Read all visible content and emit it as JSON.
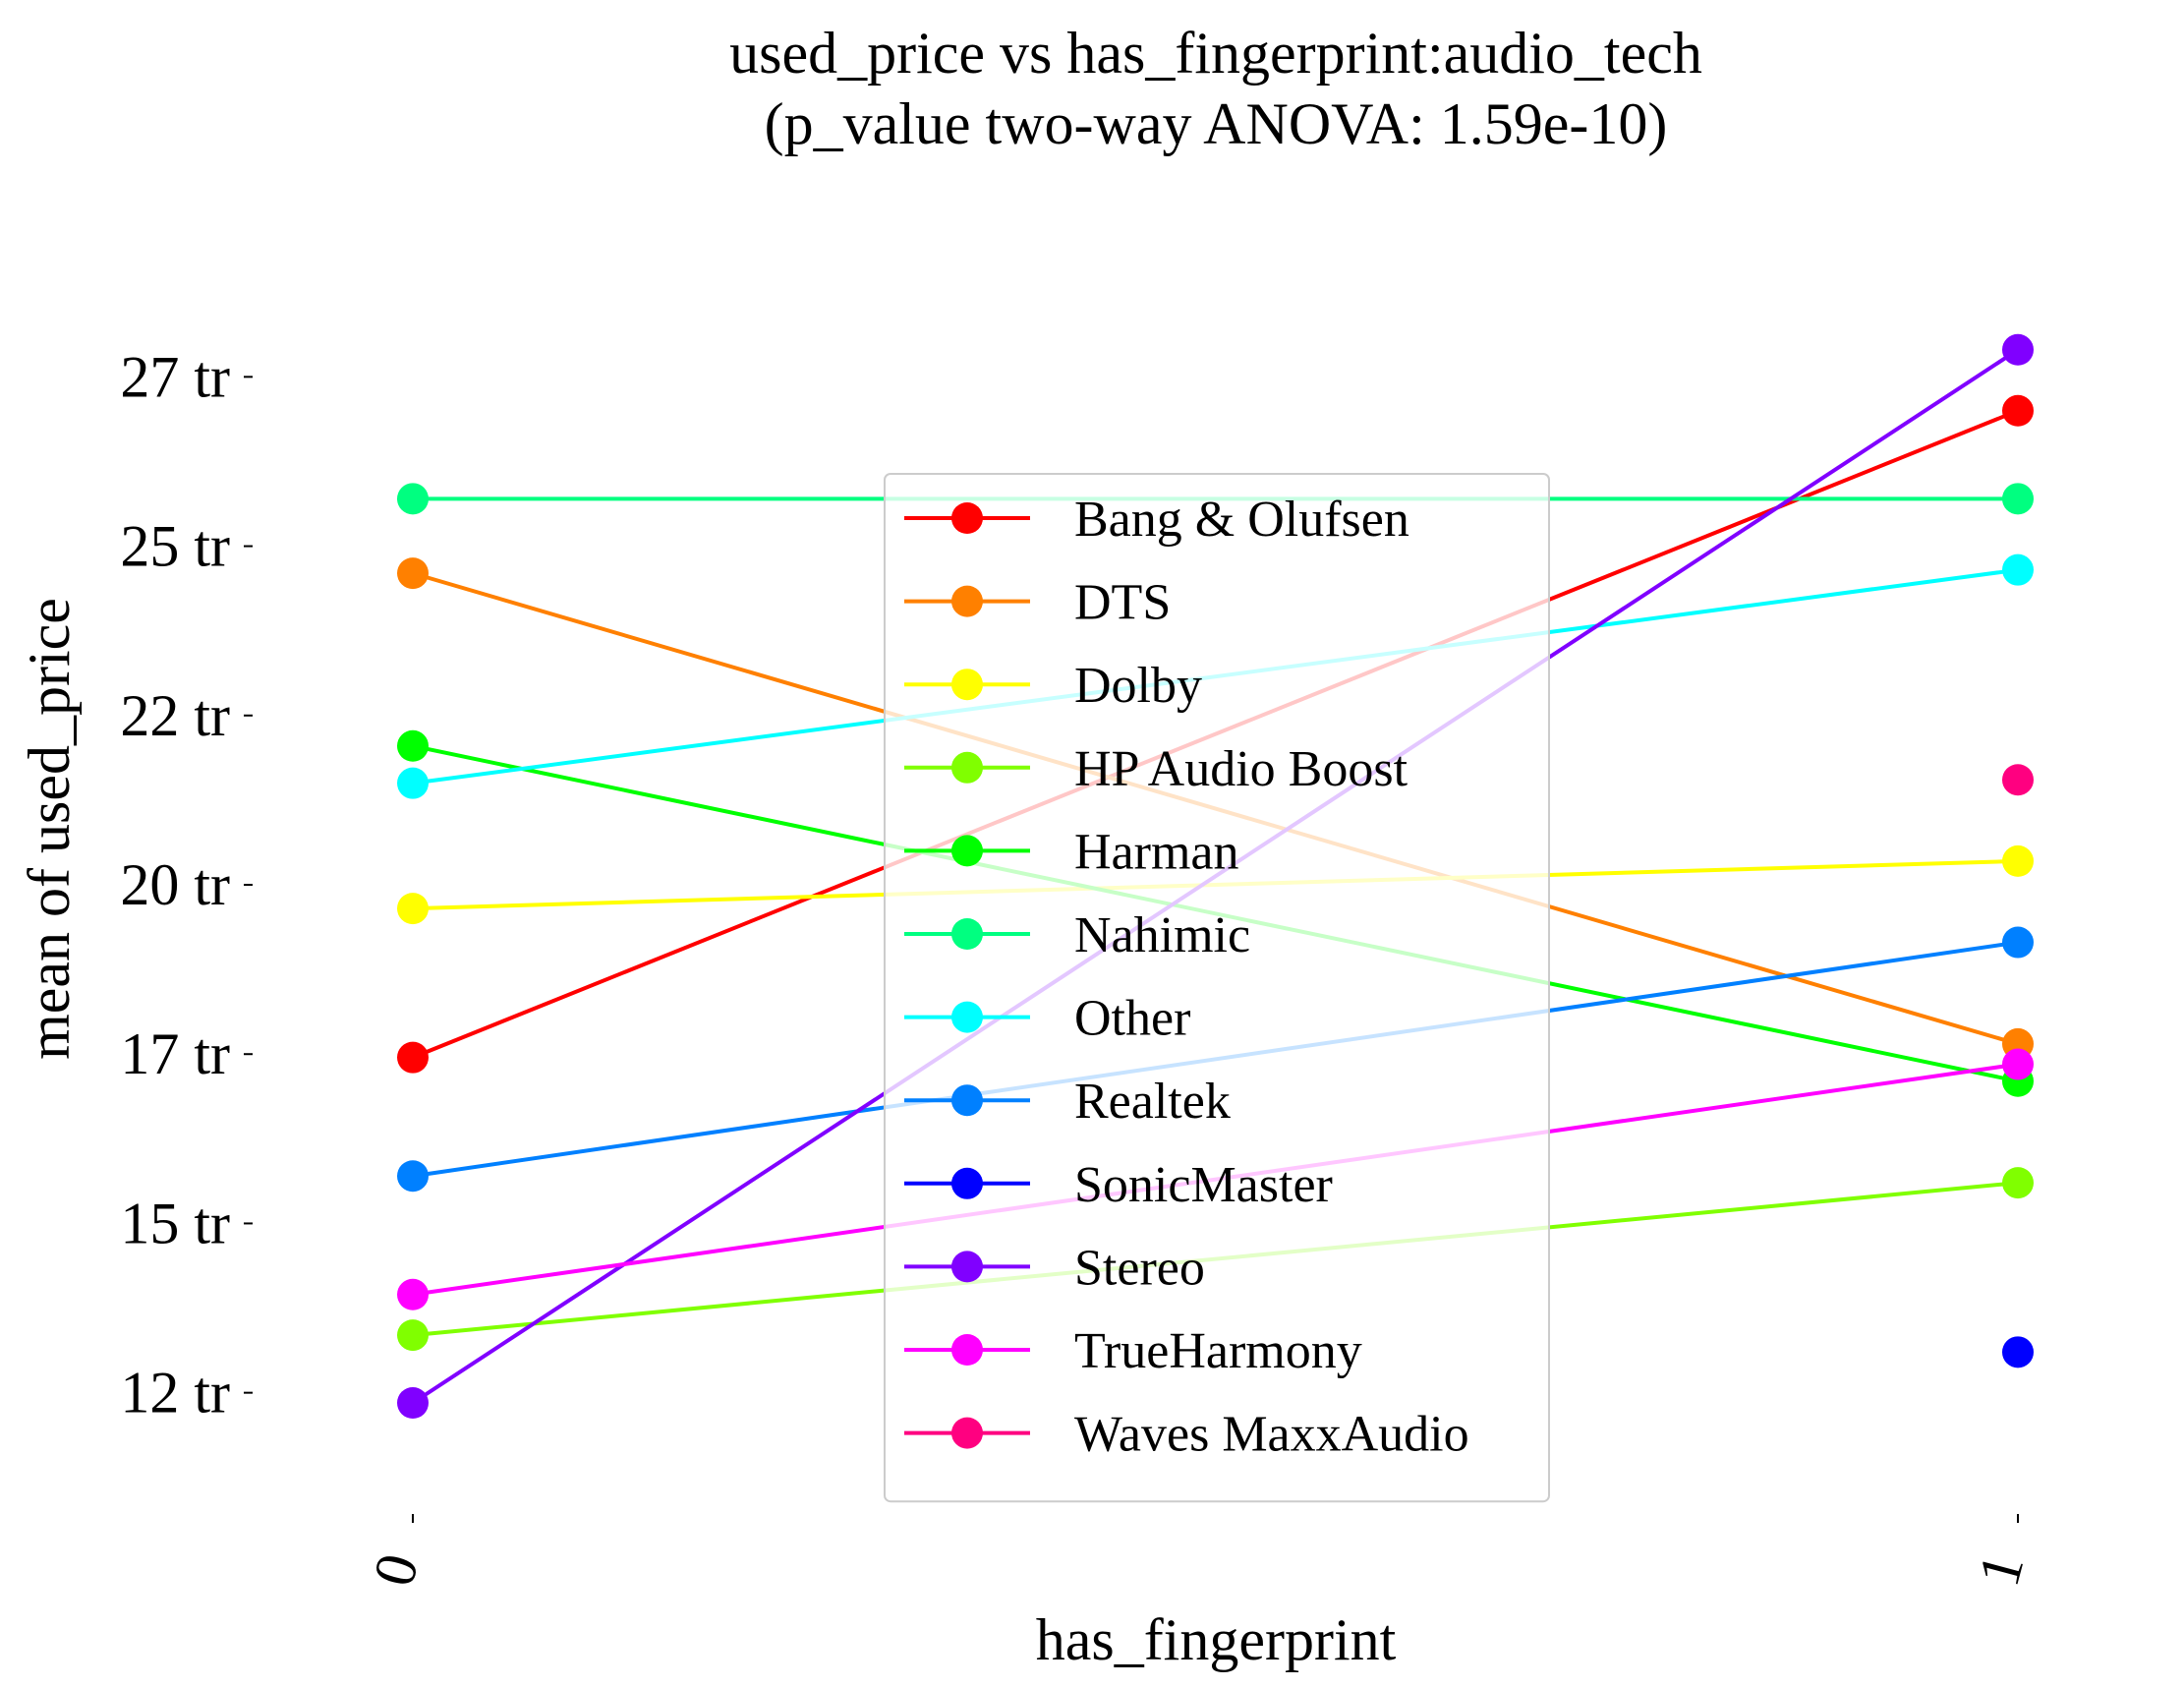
{
  "chart_data": {
    "type": "line",
    "title": "used_price vs has_fingerprint:audio_tech",
    "subtitle": "(p_value two-way ANOVA: 1.59e-10)",
    "xlabel": "has_fingerprint",
    "ylabel": "mean of used_price",
    "x": [
      "0",
      "1"
    ],
    "yticks": [
      {
        "value": 12000000,
        "label": "12 tr"
      },
      {
        "value": 14500000,
        "label": "15 tr"
      },
      {
        "value": 17000000,
        "label": "17 tr"
      },
      {
        "value": 19500000,
        "label": "20 tr"
      },
      {
        "value": 22000000,
        "label": "22 tr"
      },
      {
        "value": 24500000,
        "label": "25 tr"
      },
      {
        "value": 27000000,
        "label": "27 tr"
      }
    ],
    "ylim": [
      10500000,
      28500000
    ],
    "grid": false,
    "legend_position": "center",
    "series": [
      {
        "name": "Bang & Olufsen",
        "color": "#ff0000",
        "values": [
          16950000,
          26500000
        ]
      },
      {
        "name": "DTS",
        "color": "#ff8000",
        "values": [
          24100000,
          17150000
        ]
      },
      {
        "name": "Dolby",
        "color": "#ffff00",
        "values": [
          19150000,
          19850000
        ]
      },
      {
        "name": "HP Audio Boost",
        "color": "#80ff00",
        "values": [
          12850000,
          15100000
        ]
      },
      {
        "name": "Harman",
        "color": "#00ff00",
        "values": [
          21550000,
          16600000
        ]
      },
      {
        "name": "Nahimic",
        "color": "#00ff80",
        "values": [
          25200000,
          25200000
        ]
      },
      {
        "name": "Other",
        "color": "#00ffff",
        "values": [
          21000000,
          24150000
        ]
      },
      {
        "name": "Realtek",
        "color": "#0080ff",
        "values": [
          15200000,
          18650000
        ]
      },
      {
        "name": "SonicMaster",
        "color": "#0000ff",
        "values": [
          null,
          12600000
        ]
      },
      {
        "name": "Stereo",
        "color": "#8000ff",
        "values": [
          11850000,
          27400000
        ]
      },
      {
        "name": "TrueHarmony",
        "color": "#ff00ff",
        "values": [
          13450000,
          16850000
        ]
      },
      {
        "name": "Waves MaxxAudio",
        "color": "#ff0080",
        "values": [
          null,
          21050000
        ]
      }
    ]
  }
}
